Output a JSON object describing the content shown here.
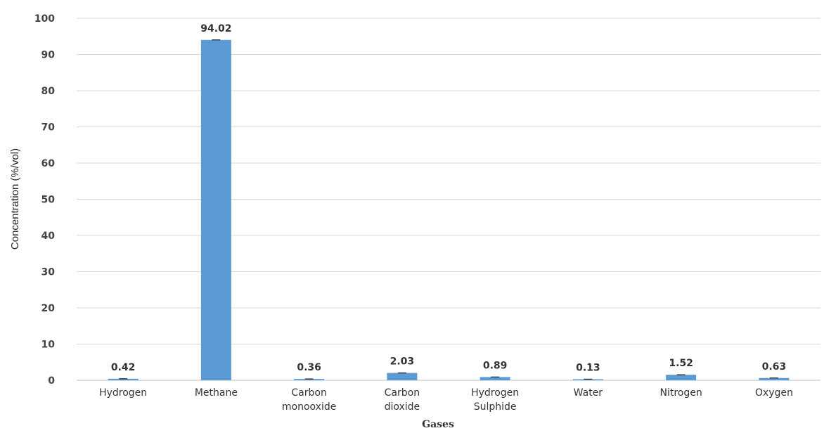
{
  "chart_data": {
    "type": "bar",
    "title": "",
    "xlabel": "Gases",
    "ylabel": "Concentration (%/vol)",
    "ylim": [
      0,
      100
    ],
    "yticks": [
      0,
      10,
      20,
      30,
      40,
      50,
      60,
      70,
      80,
      90,
      100
    ],
    "grid": true,
    "legend": "none",
    "bar_color": "#5b9bd5",
    "categories": [
      [
        "Hydrogen"
      ],
      [
        "Methane"
      ],
      [
        "Carbon",
        "monooxide"
      ],
      [
        "Carbon",
        "dioxide"
      ],
      [
        "Hydrogen",
        "Sulphide"
      ],
      [
        "Water"
      ],
      [
        "Nitrogen"
      ],
      [
        "Oxygen"
      ]
    ],
    "values": [
      0.42,
      94.02,
      0.36,
      2.03,
      0.89,
      0.13,
      1.52,
      0.63
    ],
    "data_labels": [
      "0.42",
      "94.02",
      "0.36",
      "2.03",
      "0.89",
      "0.13",
      "1.52",
      "0.63"
    ]
  }
}
